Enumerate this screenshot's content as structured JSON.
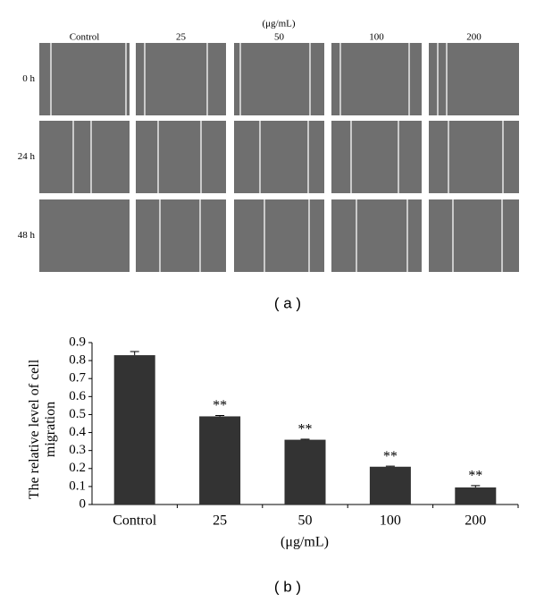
{
  "panel_a": {
    "unit": "(μg/mL)",
    "columns": [
      "Control",
      "25",
      "50",
      "100",
      "200"
    ],
    "rows": [
      "0 h",
      "24 h",
      "48 h"
    ],
    "caption": "( a )"
  },
  "chart_data": {
    "type": "bar",
    "y_label": "The relative level of cell migration",
    "x_label": "(μg/mL)",
    "categories": [
      "Control",
      "25",
      "50",
      "100",
      "200"
    ],
    "values": [
      0.83,
      0.49,
      0.36,
      0.21,
      0.095
    ],
    "errors": [
      0.02,
      0.005,
      0.003,
      0.003,
      0.01
    ],
    "significance": [
      null,
      "**",
      "**",
      "**",
      "**"
    ],
    "color": "#333333",
    "ylim": [
      0,
      0.9
    ],
    "yticks": [
      0,
      0.1,
      0.2,
      0.3,
      0.4,
      0.5,
      0.6,
      0.7,
      0.8,
      0.9
    ]
  },
  "caption_b": "( b )"
}
